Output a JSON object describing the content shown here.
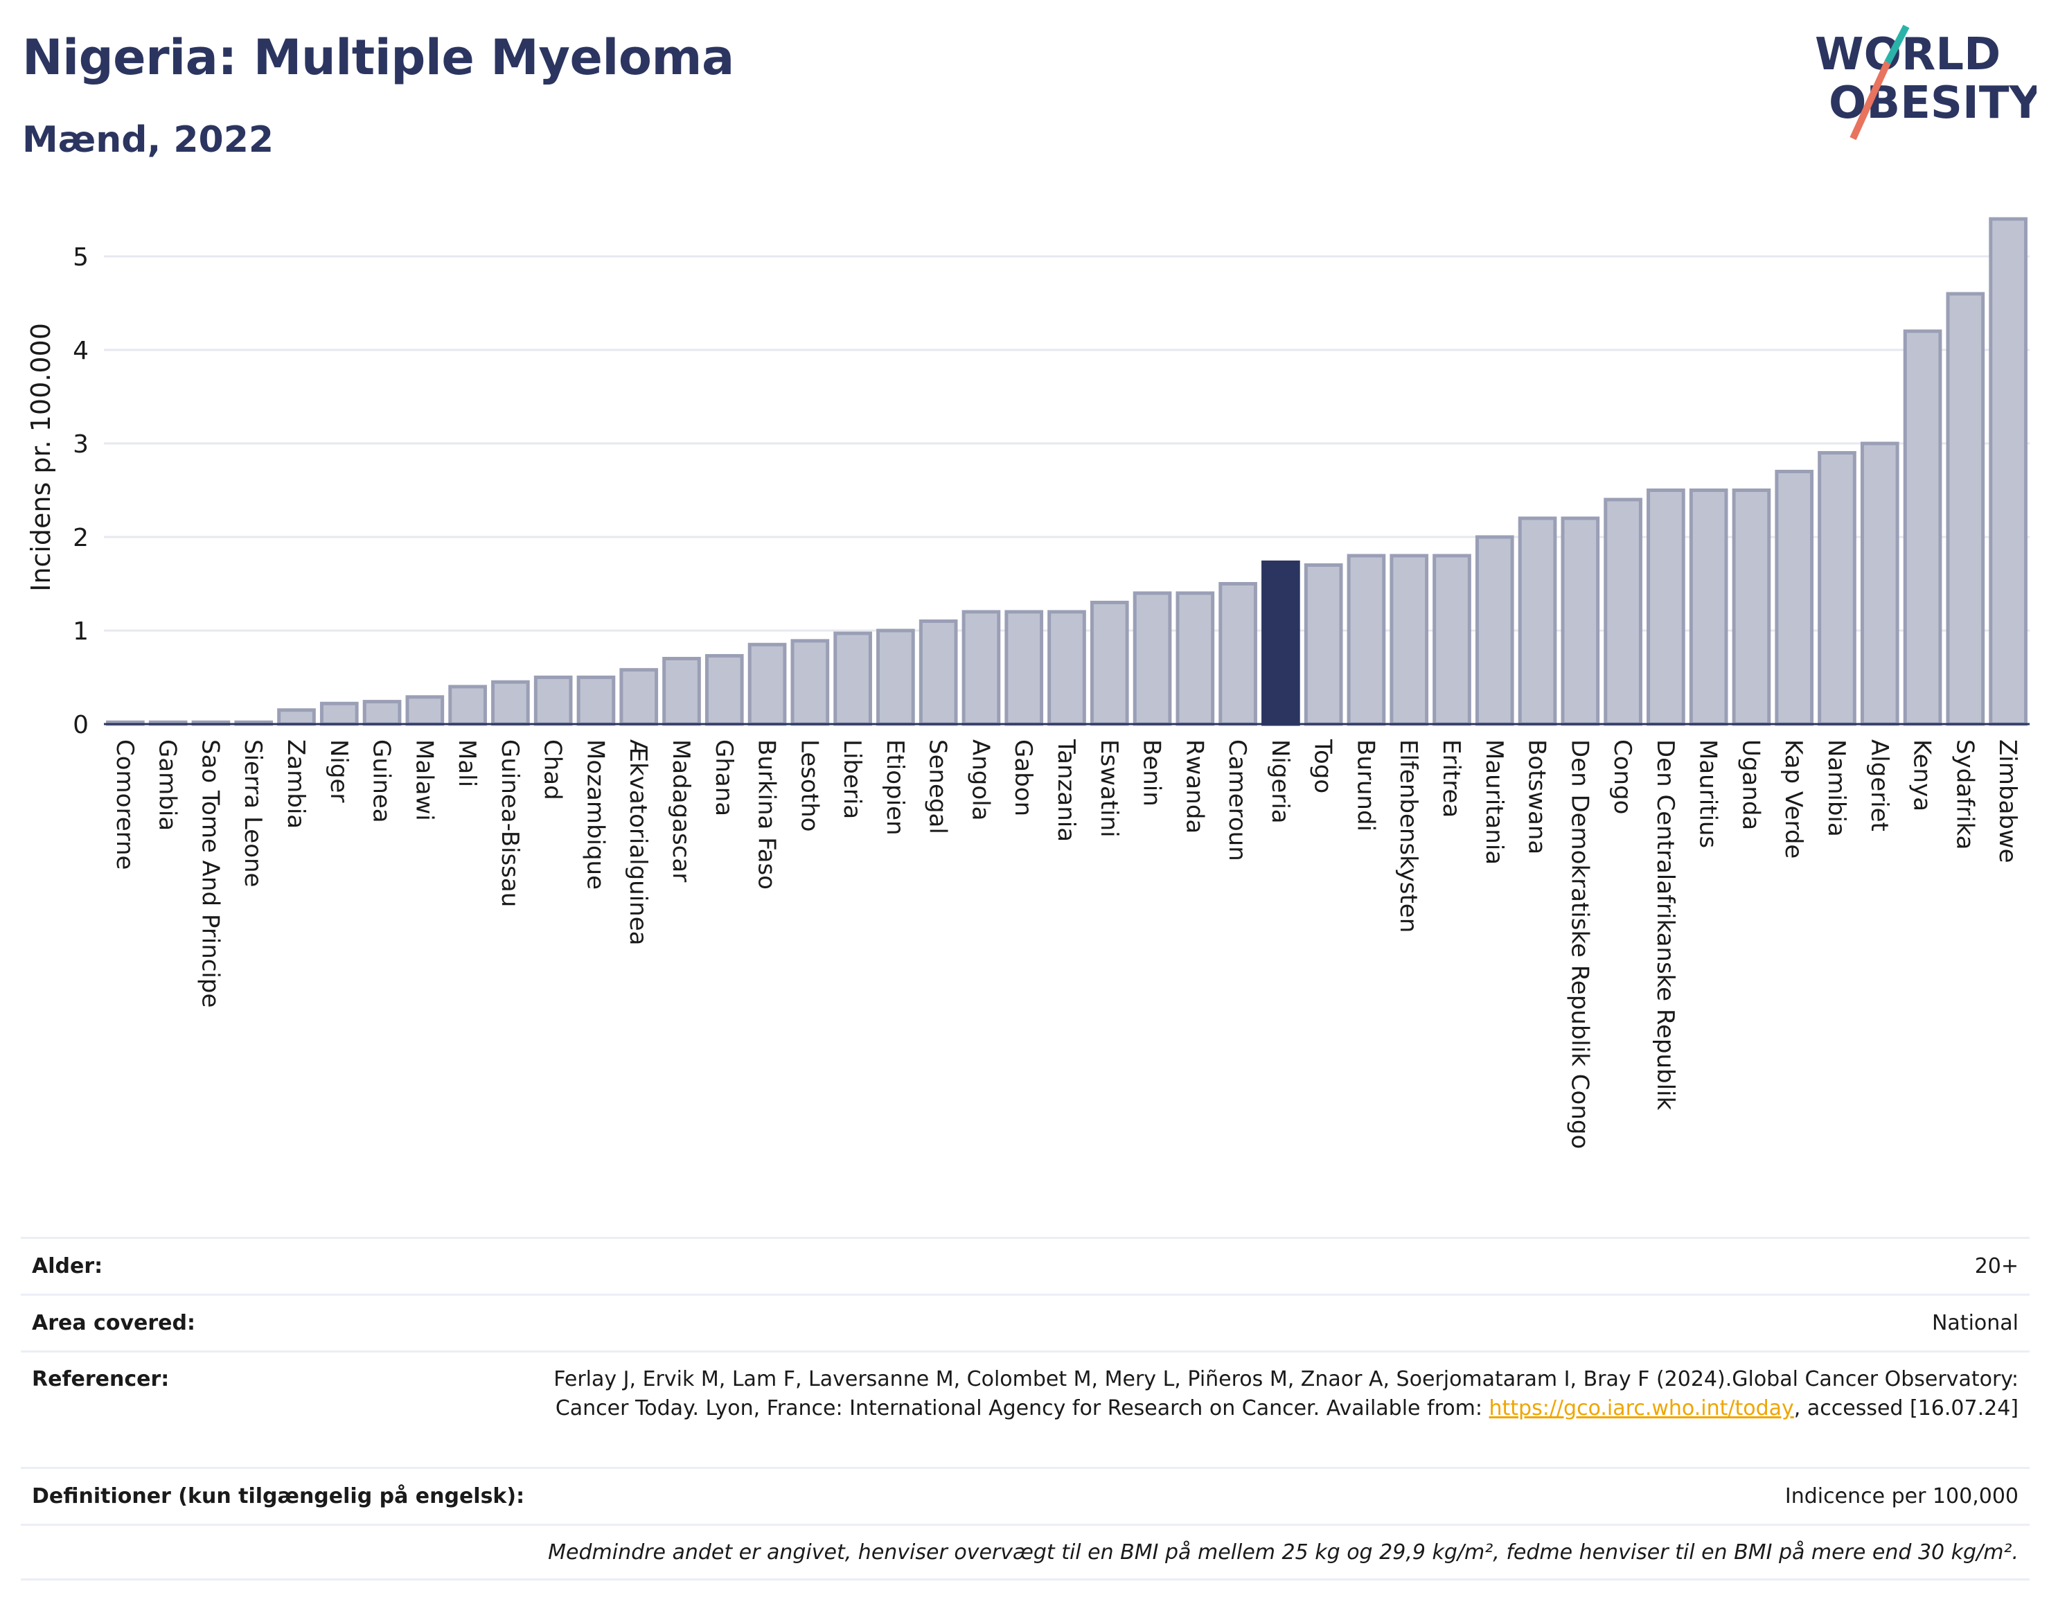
{
  "header": {
    "title": "Nigeria: Multiple Myeloma",
    "subtitle": "Mænd, 2022"
  },
  "logo": {
    "line1": "WORLD",
    "line2": "OBESITY"
  },
  "chart_data": {
    "type": "bar",
    "ylabel": "Incidens pr. 100.000",
    "ylim": [
      0,
      5.5
    ],
    "yticks": [
      0,
      1,
      2,
      3,
      4,
      5
    ],
    "grid": true,
    "highlight": "Nigeria",
    "colors": {
      "bar": "#bfc3d1",
      "bar_edge": "#9a9fb6",
      "highlight": "#2b3560"
    },
    "categories": [
      "Comorerne",
      "Gambia",
      "Sao Tome And Principe",
      "Sierra Leone",
      "Zambia",
      "Niger",
      "Guinea",
      "Malawi",
      "Mali",
      "Guinea-Bissau",
      "Chad",
      "Mozambique",
      "Ækvatorialguinea",
      "Madagascar",
      "Ghana",
      "Burkina Faso",
      "Lesotho",
      "Liberia",
      "Etiopien",
      "Senegal",
      "Angola",
      "Gabon",
      "Tanzania",
      "Eswatini",
      "Benin",
      "Rwanda",
      "Cameroun",
      "Nigeria",
      "Togo",
      "Burundi",
      "Elfenbenskysten",
      "Eritrea",
      "Mauritania",
      "Botswana",
      "Den Demokratiske Republik Congo",
      "Congo",
      "Den Centralafrikanske Republik",
      "Mauritius",
      "Uganda",
      "Kap Verde",
      "Namibia",
      "Algeriet",
      "Kenya",
      "Sydafrika",
      "Zimbabwe"
    ],
    "values": [
      0.02,
      0.02,
      0.02,
      0.02,
      0.15,
      0.22,
      0.24,
      0.29,
      0.4,
      0.45,
      0.5,
      0.5,
      0.58,
      0.7,
      0.73,
      0.85,
      0.89,
      0.97,
      1.0,
      1.1,
      1.2,
      1.2,
      1.2,
      1.3,
      1.4,
      1.4,
      1.5,
      1.73,
      1.7,
      1.8,
      1.8,
      1.8,
      2.0,
      2.2,
      2.2,
      2.4,
      2.5,
      2.5,
      2.5,
      2.7,
      2.9,
      3.0,
      4.2,
      4.6,
      5.4
    ]
  },
  "info": {
    "age_label": "Alder:",
    "age_value": "20+",
    "area_label": "Area covered:",
    "area_value": "National",
    "ref_label": "Referencer:",
    "ref_text1": "Ferlay J, Ervik M, Lam F, Laversanne M, Colombet M, Mery L, Piñeros M, Znaor A, Soerjomataram I, Bray F (2024).Global Cancer Observatory: Cancer Today. Lyon, France: International Agency for Research on Cancer. Available from: ",
    "ref_link": "https://gco.iarc.who.int/today",
    "ref_text2": ", accessed [16.07.24]",
    "def_label": "Definitioner (kun tilgængelig på engelsk):",
    "def_value": "Indicence per 100,000",
    "note": "Medmindre andet er angivet, henviser overvægt til en BMI på mellem 25 kg og 29,9 kg/m², fedme henviser til en BMI på mere end 30 kg/m²."
  }
}
